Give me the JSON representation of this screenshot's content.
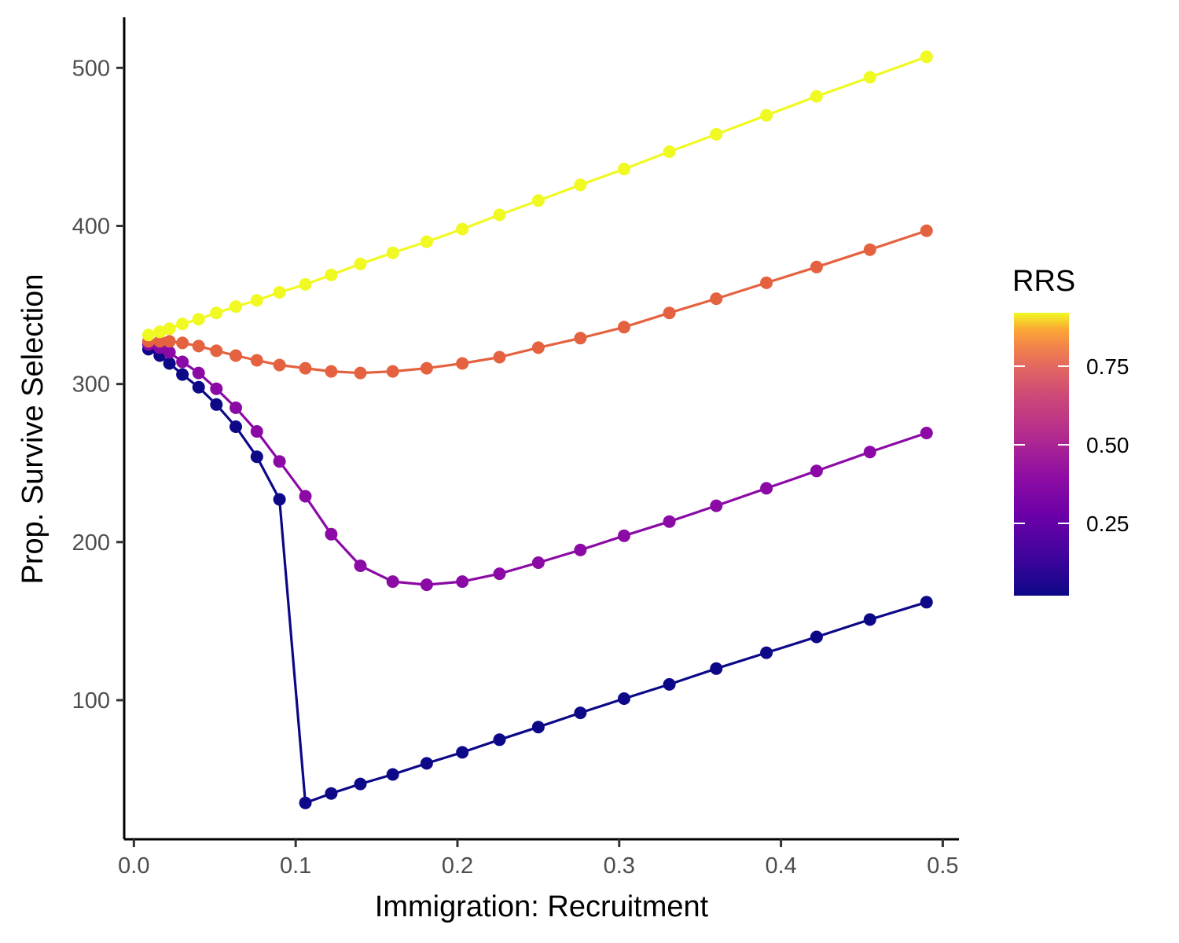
{
  "chart_data": {
    "type": "line",
    "xlabel": "Immigration: Recruitment",
    "ylabel": "Prop. Survive Selection",
    "xlim": [
      -0.006,
      0.51
    ],
    "ylim": [
      12,
      532
    ],
    "x_ticks": [
      0.0,
      0.1,
      0.2,
      0.3,
      0.4,
      0.5
    ],
    "x_tick_labels": [
      "0.0",
      "0.1",
      "0.2",
      "0.3",
      "0.4",
      "0.5"
    ],
    "y_ticks": [
      100,
      200,
      300,
      400,
      500
    ],
    "y_tick_labels": [
      "100",
      "200",
      "300",
      "400",
      "500"
    ],
    "grid": false,
    "markers": true,
    "legend": {
      "title": "RRS",
      "type": "colorbar",
      "position": "right",
      "colormap": "plasma",
      "range": [
        0.02,
        0.92
      ],
      "breaks": [
        0.25,
        0.5,
        0.75
      ],
      "break_labels": [
        "0.25",
        "0.50",
        "0.75"
      ]
    },
    "x": [
      0.009,
      0.016,
      0.022,
      0.03,
      0.04,
      0.051,
      0.063,
      0.076,
      0.09,
      0.106,
      0.122,
      0.14,
      0.16,
      0.181,
      0.203,
      0.226,
      0.25,
      0.276,
      0.303,
      0.331,
      0.36,
      0.391,
      0.422,
      0.455,
      0.49
    ],
    "series": [
      {
        "rrs": 0.02,
        "color": "#0d0887",
        "values": [
          322,
          318,
          313,
          306,
          298,
          287,
          273,
          254,
          227,
          35,
          41,
          47,
          53,
          60,
          67,
          75,
          83,
          92,
          101,
          110,
          120,
          130,
          140,
          151,
          162
        ]
      },
      {
        "rrs": 0.35,
        "color": "#8b0aa5",
        "values": [
          325,
          323,
          320,
          314,
          307,
          297,
          285,
          270,
          251,
          229,
          205,
          185,
          175,
          173,
          175,
          180,
          187,
          195,
          204,
          213,
          223,
          234,
          245,
          257,
          269
        ]
      },
      {
        "rrs": 0.62,
        "color": "#e4623f",
        "values": [
          327,
          327,
          327,
          326,
          324,
          321,
          318,
          315,
          312,
          310,
          308,
          307,
          308,
          310,
          313,
          317,
          323,
          329,
          336,
          345,
          354,
          364,
          374,
          385,
          397
        ]
      },
      {
        "rrs": 0.92,
        "color": "#f0f921",
        "values": [
          331,
          333,
          335,
          338,
          341,
          345,
          349,
          353,
          358,
          363,
          369,
          376,
          383,
          390,
          398,
          407,
          416,
          426,
          436,
          447,
          458,
          470,
          482,
          494,
          507
        ]
      }
    ]
  }
}
